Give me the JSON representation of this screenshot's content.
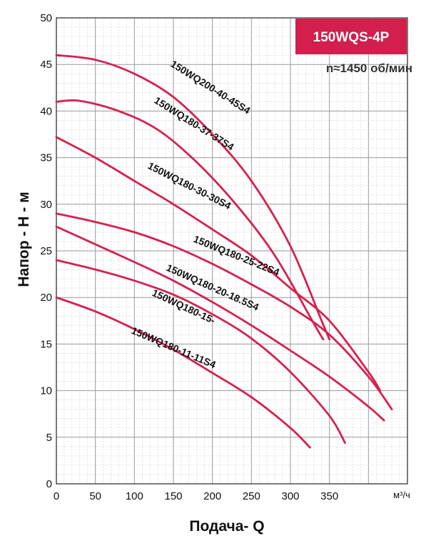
{
  "chart_data": {
    "type": "line",
    "title": "150WQS-4P",
    "subtitle": "n≈1450 об/мин",
    "xlabel": "Подача- Q",
    "x_unit": "м³/ч",
    "ylabel": "Напор - Н - м",
    "xlim": [
      0,
      450
    ],
    "ylim": [
      0,
      50
    ],
    "x_ticks": [
      "0",
      "50",
      "100",
      "150",
      "200",
      "250",
      "300",
      "350"
    ],
    "y_ticks": [
      "0",
      "5",
      "10",
      "15",
      "20",
      "25",
      "30",
      "35",
      "40",
      "45",
      "50"
    ],
    "grid": true,
    "line_color": "#d6204f",
    "badge_color": "#d21f4d",
    "series": [
      {
        "name": "150WQ200-40-45S4",
        "x": [
          0,
          50,
          100,
          150,
          200,
          250,
          300,
          340,
          350
        ],
        "y": [
          46,
          45.5,
          44,
          41.5,
          37.5,
          32.5,
          25.5,
          17.5,
          15.5
        ]
      },
      {
        "name": "150WQ180-37-37S4",
        "x": [
          0,
          30,
          80,
          130,
          180,
          230,
          280,
          330,
          342
        ],
        "y": [
          41,
          41.1,
          40,
          38,
          34.5,
          30,
          24.5,
          17.2,
          15.5
        ]
      },
      {
        "name": "150WQ180-30-30S4",
        "x": [
          0,
          50,
          100,
          150,
          200,
          250,
          300,
          350,
          400,
          415
        ],
        "y": [
          37.2,
          35,
          32.5,
          30,
          27.3,
          24.5,
          21,
          17.5,
          12,
          10
        ]
      },
      {
        "name": "150WQ180-25-22S4",
        "x": [
          0,
          50,
          100,
          150,
          200,
          250,
          300,
          350,
          400,
          430
        ],
        "y": [
          29,
          28.1,
          27,
          25.5,
          23.6,
          21.4,
          19,
          16,
          11.5,
          8
        ]
      },
      {
        "name": "150WQ180-20-18.5S4",
        "x": [
          0,
          50,
          100,
          150,
          200,
          250,
          300,
          350,
          400,
          420
        ],
        "y": [
          27.6,
          25.7,
          23.8,
          21.8,
          19.5,
          17,
          14.3,
          11.5,
          8.3,
          6.8
        ]
      },
      {
        "name": "150WQ180-15-",
        "x": [
          0,
          50,
          100,
          150,
          200,
          250,
          300,
          350,
          370
        ],
        "y": [
          24,
          23,
          21.8,
          20.3,
          18.2,
          15.6,
          12,
          7.3,
          4.4
        ]
      },
      {
        "name": "150WQ180-11-11S4",
        "x": [
          0,
          50,
          100,
          150,
          200,
          250,
          300,
          325
        ],
        "y": [
          20,
          18.5,
          16.6,
          14.4,
          11.9,
          9.3,
          6,
          3.9
        ]
      }
    ]
  }
}
